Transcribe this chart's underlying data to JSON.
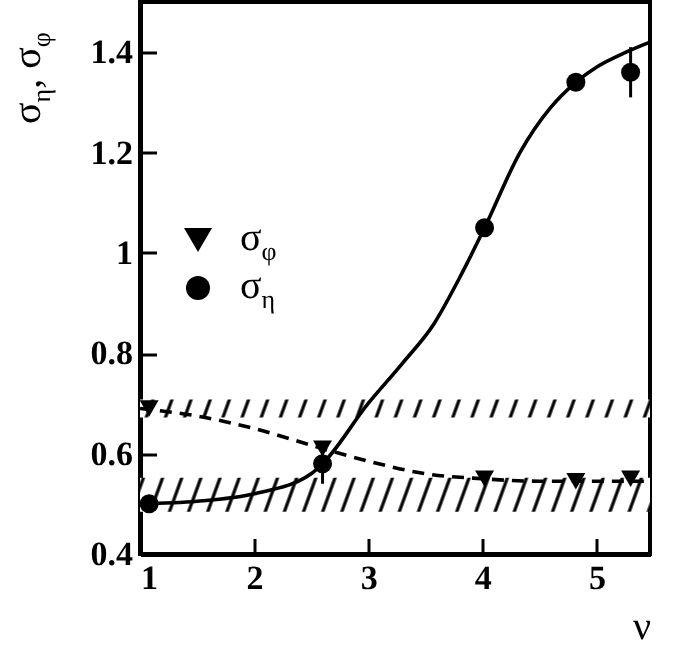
{
  "chart_data": {
    "type": "scatter",
    "xlabel": "ν",
    "ylabel": "σ$_{η}$, σ$_{φ}$",
    "xlim": [
      1,
      5.47
    ],
    "ylim": [
      0.4,
      1.5
    ],
    "xticks": [
      1,
      2,
      3,
      4,
      5
    ],
    "yticks": [
      0.4,
      0.6,
      0.8,
      1,
      1.2,
      1.4
    ],
    "grid": false,
    "legend": "left",
    "series": [
      {
        "name": "σ$_{φ}$",
        "marker": "triangle",
        "color": "#000000",
        "x": [
          1.08,
          2.6,
          4.02,
          4.82,
          5.3
        ],
        "values": [
          0.69,
          0.61,
          0.55,
          0.545,
          0.55
        ]
      },
      {
        "name": "σ$_{η}$",
        "marker": "circle",
        "color": "#000000",
        "x": [
          1.08,
          2.6,
          4.02,
          4.82,
          5.3
        ],
        "values": [
          0.5,
          0.58,
          1.05,
          1.34,
          1.36
        ],
        "errors": [
          null,
          0.04,
          null,
          null,
          0.05
        ]
      },
      {
        "type": "line",
        "line_style": "solid",
        "color": "#000000",
        "x": [
          1,
          1.5,
          2,
          2.5,
          2.6,
          3,
          3.3,
          3.58,
          3.8,
          4.02,
          4.33,
          4.6,
          4.82,
          5,
          5.26,
          5.47
        ],
        "values": [
          0.5,
          0.505,
          0.52,
          0.56,
          0.58,
          0.7,
          0.78,
          0.86,
          0.95,
          1.05,
          1.2,
          1.29,
          1.34,
          1.37,
          1.4,
          1.42
        ]
      },
      {
        "type": "line",
        "line_style": "dashed",
        "color": "#000000",
        "x": [
          1,
          1.5,
          2,
          2.6,
          3,
          3.5,
          4,
          4.5,
          5.47
        ],
        "values": [
          0.69,
          0.675,
          0.65,
          0.61,
          0.585,
          0.56,
          0.55,
          0.545,
          0.545
        ]
      }
    ],
    "bands": [
      {
        "axis": "y",
        "from": 0.672,
        "to": 0.708,
        "color": "#000000"
      },
      {
        "axis": "y",
        "from": 0.484,
        "to": 0.552,
        "color": "#000000"
      }
    ]
  }
}
